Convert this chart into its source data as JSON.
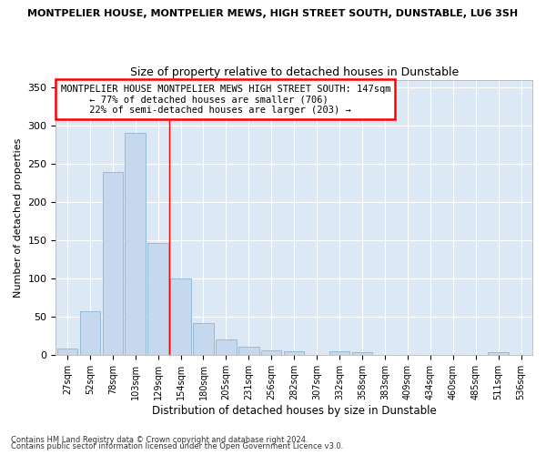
{
  "title": "MONTPELIER HOUSE, MONTPELIER MEWS, HIGH STREET SOUTH, DUNSTABLE, LU6 3SH",
  "subtitle": "Size of property relative to detached houses in Dunstable",
  "xlabel": "Distribution of detached houses by size in Dunstable",
  "ylabel": "Number of detached properties",
  "categories": [
    "27sqm",
    "52sqm",
    "78sqm",
    "103sqm",
    "129sqm",
    "154sqm",
    "180sqm",
    "205sqm",
    "231sqm",
    "256sqm",
    "282sqm",
    "307sqm",
    "332sqm",
    "358sqm",
    "383sqm",
    "409sqm",
    "434sqm",
    "460sqm",
    "485sqm",
    "511sqm",
    "536sqm"
  ],
  "values": [
    8,
    57,
    240,
    291,
    146,
    100,
    41,
    20,
    11,
    6,
    4,
    0,
    4,
    3,
    0,
    0,
    0,
    0,
    0,
    3,
    0
  ],
  "bar_color": "#c5d8ee",
  "bar_edgecolor": "#8ab4d4",
  "vline_x": 4.5,
  "vline_color": "red",
  "annotation_title": "MONTPELIER HOUSE MONTPELIER MEWS HIGH STREET SOUTH: 147sqm",
  "annotation_line1": "← 77% of detached houses are smaller (706)",
  "annotation_line2": "22% of semi-detached houses are larger (203) →",
  "annotation_box_color": "red",
  "ylim": [
    0,
    360
  ],
  "yticks": [
    0,
    50,
    100,
    150,
    200,
    250,
    300,
    350
  ],
  "footer1": "Contains HM Land Registry data © Crown copyright and database right 2024.",
  "footer2": "Contains public sector information licensed under the Open Government Licence v3.0.",
  "bg_color": "#ffffff",
  "plot_bg_color": "#dce8f4"
}
